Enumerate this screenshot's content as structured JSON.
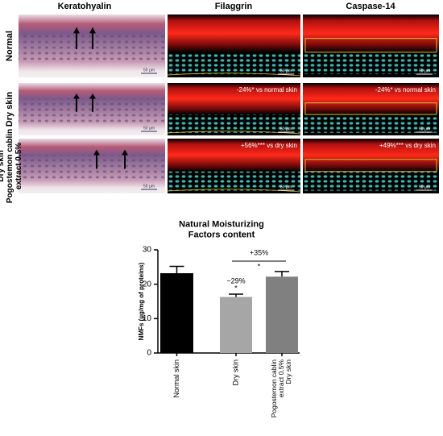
{
  "figure": {
    "columns": [
      "Keratohyalin",
      "Filaggrin",
      "Caspase-14"
    ],
    "rows": [
      "Normal",
      "Dry skin",
      "Dry skin\nPogostemon cablin\nextract 0.5%"
    ],
    "annotations": [
      "-24%* vs normal skin",
      "-24%* vs normal skin",
      "+56%*** vs dry skin",
      "+49%*** vs dry skin"
    ],
    "scale_bar": "50 µm"
  },
  "chart_data": {
    "type": "bar",
    "title": "Natural Moisturizing\nFactors content",
    "y_label": "NMFs (µg/mg of proteins)",
    "categories": [
      "Normal skin",
      "Dry skin",
      "Pogostemon cablin\nextract 0.5%\nDry skin"
    ],
    "values": [
      23.2,
      16.3,
      22.2
    ],
    "errors": [
      2.0,
      0.8,
      1.5
    ],
    "colors": [
      "#000000",
      "#a6a6a6",
      "#808080"
    ],
    "ylim": [
      0,
      30
    ],
    "yticks": [
      0,
      10,
      20,
      30
    ],
    "annotations": [
      "−29%",
      "*",
      "+35%",
      "*"
    ]
  }
}
